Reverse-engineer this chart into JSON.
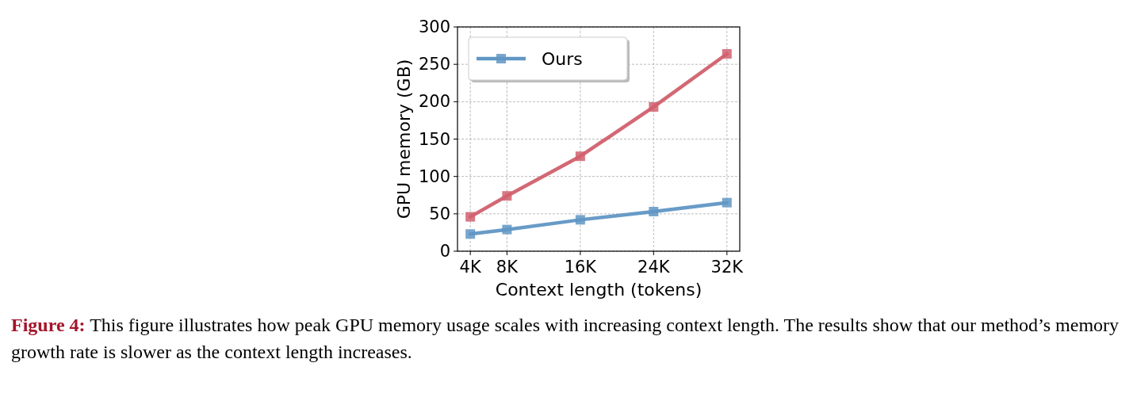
{
  "chart_data": {
    "type": "line",
    "xlabel": "Context length (tokens)",
    "ylabel": "GPU memory (GB)",
    "x": [
      4,
      8,
      16,
      24,
      32
    ],
    "xlim": [
      2.6,
      33.4
    ],
    "xticks": [
      {
        "value": 4,
        "label": "4K"
      },
      {
        "value": 8,
        "label": "8K"
      },
      {
        "value": 16,
        "label": "16K"
      },
      {
        "value": 24,
        "label": "24K"
      },
      {
        "value": 32,
        "label": "32K"
      }
    ],
    "ylim": [
      0,
      300
    ],
    "yticks": [
      0,
      50,
      100,
      150,
      200,
      250,
      300
    ],
    "series": [
      {
        "color": "#d1606e",
        "values": [
          46,
          74,
          127,
          193,
          264
        ]
      },
      {
        "name": "Ours",
        "color": "#6096c4",
        "values": [
          23,
          29,
          42,
          53,
          65
        ]
      }
    ],
    "marker": "square",
    "line_style": "solid",
    "grid": true,
    "legend": "top left",
    "annotations": [
      "Figure 4:",
      "This figure illustrates how peak GPU memory usage scales with increasing context length. The results show that our method’s memory growth rate is slower as the context length increases."
    ]
  }
}
